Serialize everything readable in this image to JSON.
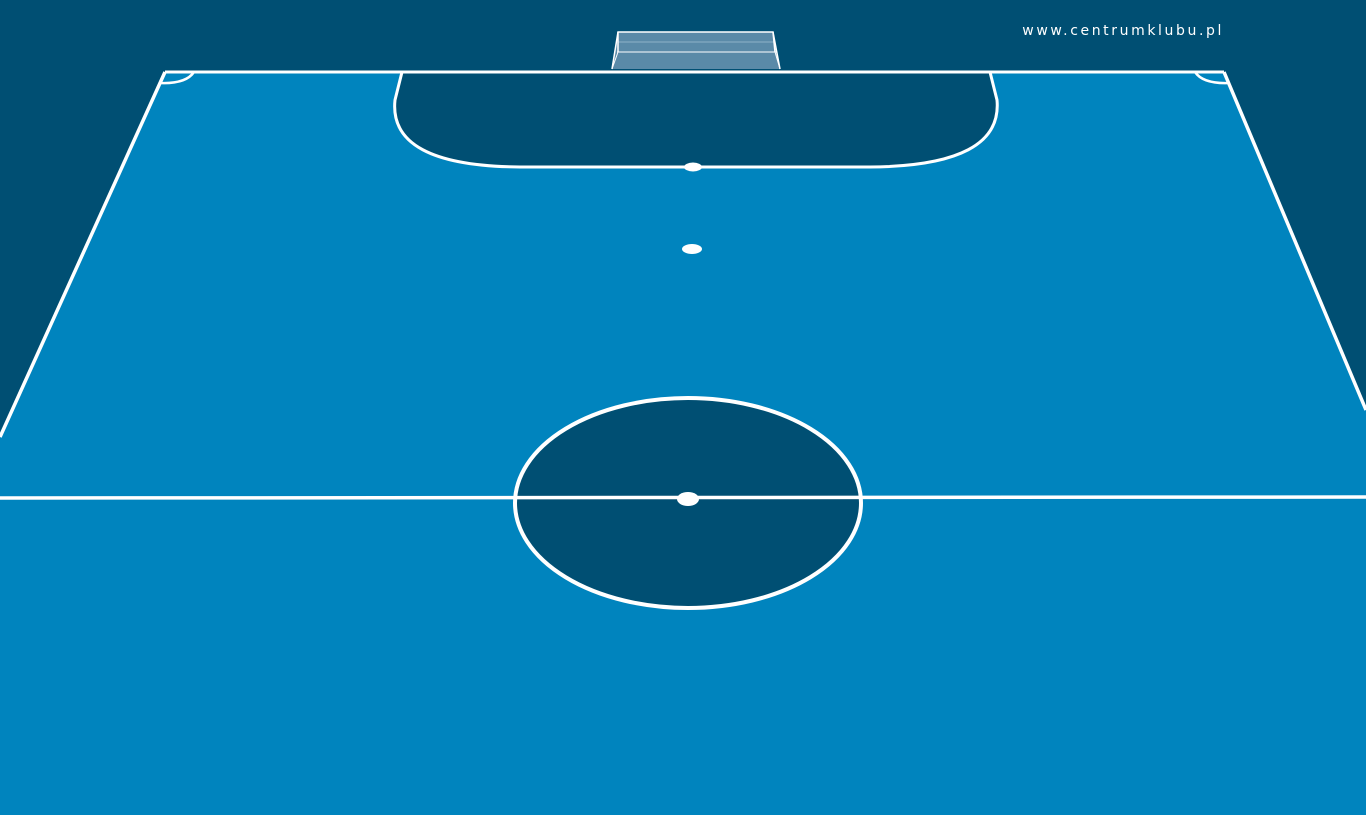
{
  "watermark": {
    "text": "www.centrumklubu.pl"
  },
  "colors": {
    "background": "#004f73",
    "court_surface": "#0084be",
    "penalty_area_fill": "#004f73",
    "center_circle_fill": "#004f73",
    "lines": "#ffffff",
    "goal_frame": "#ffffff",
    "goal_net": "#5a8aa8"
  },
  "icons": {
    "court": "futsal-court-half-perspective",
    "goal": "goal-net-icon"
  }
}
